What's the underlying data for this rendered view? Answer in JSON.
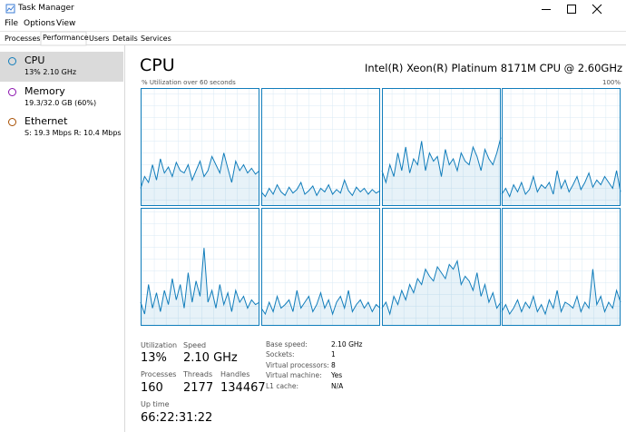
{
  "window": {
    "title": "Task Manager",
    "menu": [
      "File",
      "Options",
      "View"
    ],
    "tabs": [
      "Processes",
      "Performance",
      "Users",
      "Details",
      "Services"
    ]
  },
  "sidebar": [
    {
      "name": "CPU",
      "detail": "13% 2.10 GHz"
    },
    {
      "name": "Memory",
      "detail": "19.3/32.0 GB (60%)"
    },
    {
      "name": "Ethernet",
      "detail": "S: 19.3 Mbps R: 10.4 Mbps"
    }
  ],
  "header": {
    "title": "CPU",
    "model": "Intel(R) Xeon(R) Platinum 8171M CPU @ 2.60GHz"
  },
  "cpu_graphs": {
    "caption": "% Utilization over 60 seconds",
    "max_label": "100%",
    "ylim": [
      0,
      100
    ],
    "cores": [
      {
        "values": [
          15,
          25,
          20,
          35,
          22,
          40,
          28,
          33,
          25,
          37,
          30,
          28,
          35,
          22,
          30,
          38,
          25,
          30,
          42,
          35,
          28,
          45,
          32,
          20,
          38,
          30,
          35,
          28,
          32,
          27,
          30
        ]
      },
      {
        "values": [
          12,
          8,
          15,
          10,
          18,
          12,
          9,
          16,
          11,
          14,
          20,
          10,
          13,
          17,
          9,
          15,
          12,
          18,
          10,
          14,
          11,
          22,
          13,
          9,
          16,
          12,
          15,
          10,
          14,
          11,
          13
        ]
      },
      {
        "values": [
          30,
          20,
          35,
          25,
          45,
          30,
          50,
          28,
          40,
          35,
          55,
          30,
          45,
          38,
          42,
          25,
          48,
          35,
          40,
          30,
          45,
          38,
          35,
          50,
          42,
          30,
          48,
          40,
          35,
          45,
          58
        ]
      },
      {
        "values": [
          10,
          15,
          8,
          18,
          12,
          20,
          10,
          14,
          25,
          12,
          18,
          15,
          20,
          10,
          30,
          15,
          22,
          12,
          18,
          25,
          14,
          20,
          28,
          16,
          22,
          18,
          25,
          20,
          15,
          30,
          12
        ]
      },
      {
        "values": [
          20,
          10,
          35,
          15,
          28,
          12,
          30,
          18,
          40,
          22,
          35,
          15,
          45,
          20,
          38,
          25,
          66,
          20,
          30,
          15,
          35,
          18,
          28,
          12,
          30,
          20,
          25,
          15,
          22,
          18,
          20
        ]
      },
      {
        "values": [
          15,
          10,
          20,
          12,
          25,
          15,
          18,
          22,
          12,
          30,
          15,
          20,
          25,
          12,
          18,
          28,
          15,
          22,
          10,
          20,
          25,
          15,
          30,
          12,
          18,
          22,
          15,
          20,
          12,
          18,
          15
        ]
      },
      {
        "values": [
          15,
          20,
          10,
          25,
          18,
          30,
          22,
          35,
          28,
          40,
          35,
          48,
          42,
          38,
          50,
          45,
          40,
          52,
          48,
          55,
          35,
          42,
          38,
          30,
          45,
          25,
          35,
          20,
          28,
          15,
          20
        ]
      },
      {
        "values": [
          12,
          18,
          10,
          15,
          22,
          12,
          20,
          15,
          25,
          12,
          18,
          10,
          22,
          15,
          30,
          12,
          20,
          18,
          15,
          25,
          12,
          20,
          15,
          48,
          18,
          25,
          12,
          20,
          15,
          30,
          20
        ]
      }
    ]
  },
  "stats": [
    {
      "label": "Utilization",
      "value": "13%"
    },
    {
      "label": "Speed",
      "value": "2.10 GHz"
    },
    {
      "label": "Processes",
      "value": "160"
    },
    {
      "label": "Threads",
      "value": "2177"
    },
    {
      "label": "Handles",
      "value": "134467"
    },
    {
      "label": "Up time",
      "value": "66:22:31:22"
    }
  ],
  "details": [
    [
      "Base speed:",
      "2.10 GHz"
    ],
    [
      "Sockets:",
      "1"
    ],
    [
      "Virtual processors:",
      "8"
    ],
    [
      "Virtual machine:",
      "Yes"
    ],
    [
      "L1 cache:",
      "N/A"
    ]
  ]
}
